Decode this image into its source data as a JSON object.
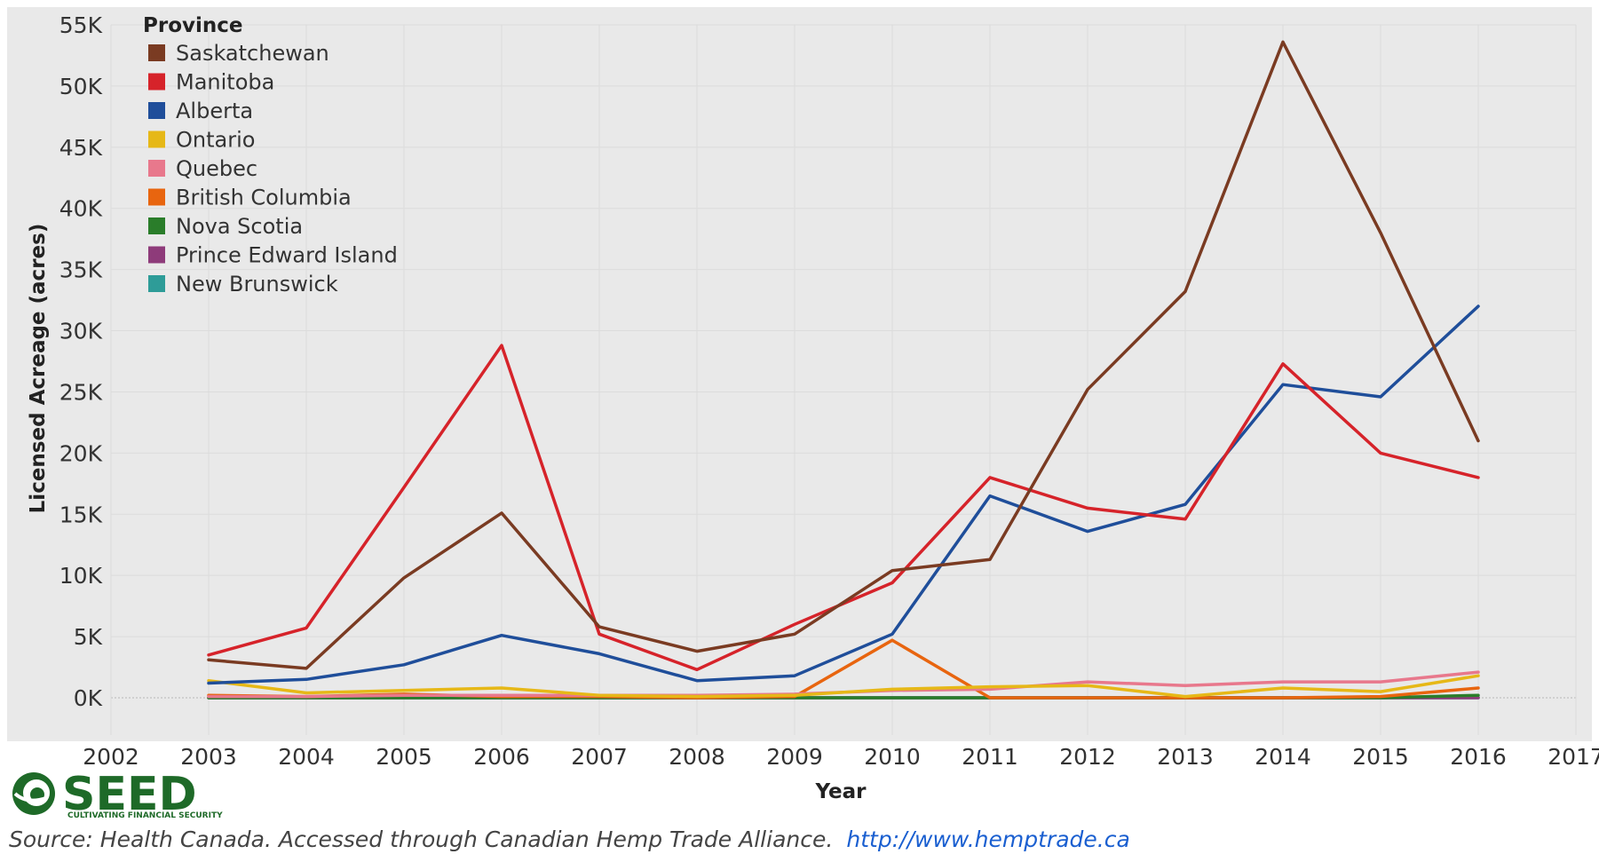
{
  "chart_data": {
    "type": "line",
    "legend_title": "Province",
    "legend_position": "top-left",
    "grid": true,
    "xlabel": "Year",
    "ylabel": "Licensed Acreage (acres)",
    "x_ticks": [
      "2002",
      "2003",
      "2004",
      "2005",
      "2006",
      "2007",
      "2008",
      "2009",
      "2010",
      "2011",
      "2012",
      "2013",
      "2014",
      "2015",
      "2016",
      "2017"
    ],
    "xlim": [
      2002,
      2017
    ],
    "y_ticks": [
      "0K",
      "5K",
      "10K",
      "15K",
      "20K",
      "25K",
      "30K",
      "35K",
      "40K",
      "45K",
      "50K",
      "55K"
    ],
    "ylim": [
      0,
      55000
    ],
    "x": [
      2003,
      2004,
      2005,
      2006,
      2007,
      2008,
      2009,
      2010,
      2011,
      2012,
      2013,
      2014,
      2015,
      2016
    ],
    "series": [
      {
        "name": "Saskatchewan",
        "color": "#7a3b22",
        "values": [
          3100,
          2400,
          9800,
          15100,
          5800,
          3800,
          5200,
          10400,
          11300,
          25200,
          33200,
          53600,
          38000,
          21000
        ]
      },
      {
        "name": "Manitoba",
        "color": "#d6232a",
        "values": [
          3500,
          5700,
          17200,
          28800,
          5200,
          2300,
          6000,
          9400,
          18000,
          15500,
          14600,
          27300,
          20000,
          18000
        ]
      },
      {
        "name": "Alberta",
        "color": "#1f4e9a",
        "values": [
          1200,
          1500,
          2700,
          5100,
          3600,
          1400,
          1800,
          5200,
          16500,
          13600,
          15800,
          25600,
          24600,
          32000
        ]
      },
      {
        "name": "Ontario",
        "color": "#e6b817",
        "values": [
          1400,
          400,
          600,
          800,
          200,
          100,
          200,
          700,
          900,
          1000,
          100,
          800,
          500,
          1800
        ]
      },
      {
        "name": "Quebec",
        "color": "#e8788c",
        "values": [
          100,
          100,
          200,
          200,
          200,
          200,
          300,
          600,
          700,
          1300,
          1000,
          1300,
          1300,
          2100
        ]
      },
      {
        "name": "British Columbia",
        "color": "#e8650f",
        "values": [
          200,
          100,
          300,
          100,
          100,
          0,
          100,
          4700,
          0,
          0,
          0,
          0,
          100,
          800
        ]
      },
      {
        "name": "Nova Scotia",
        "color": "#2a7d2a",
        "values": [
          0,
          0,
          0,
          0,
          0,
          0,
          0,
          0,
          0,
          0,
          0,
          0,
          0,
          200
        ]
      },
      {
        "name": "Prince Edward Island",
        "color": "#8e3b7a",
        "values": [
          0,
          0,
          0,
          0,
          0,
          0,
          0,
          0,
          0,
          0,
          0,
          0,
          0,
          0
        ]
      },
      {
        "name": "New Brunswick",
        "color": "#2e9c98",
        "values": [
          0,
          0,
          0,
          0,
          0,
          0,
          0,
          0,
          0,
          0,
          0,
          0,
          0,
          0
        ]
      }
    ]
  },
  "logo": {
    "name": "SEED",
    "tagline": "CULTIVATING FINANCIAL SECURITY"
  },
  "source": {
    "text": "Source: Health Canada. Accessed through Canadian Hemp Trade Alliance.",
    "link": "http://www.hemptrade.ca"
  }
}
